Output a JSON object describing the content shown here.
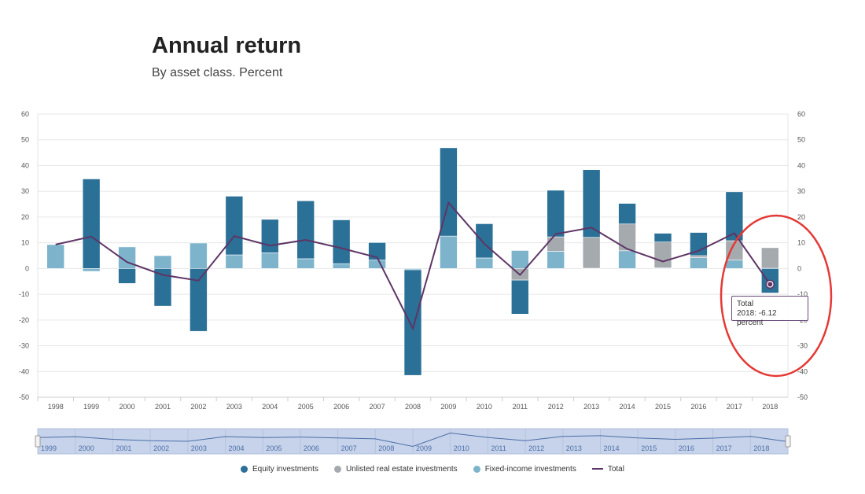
{
  "header": {
    "title": "Annual return",
    "subtitle": "By asset class. Percent"
  },
  "colors": {
    "equity": "#2b7096",
    "real_estate": "#a5aaaf",
    "fixed_income": "#7db4cc",
    "total": "#5e3566",
    "grid": "#e6e6e6",
    "highlight": "#e53935",
    "navigator": "#c7d3ea"
  },
  "chart_data": {
    "type": "bar",
    "title": "Annual return",
    "subtitle": "By asset class. Percent",
    "ylim": [
      -50,
      60
    ],
    "yticks": [
      -50,
      -40,
      -30,
      -20,
      -10,
      0,
      10,
      20,
      30,
      40,
      50,
      60
    ],
    "categories": [
      "1998",
      "1999",
      "2000",
      "2001",
      "2002",
      "2003",
      "2004",
      "2005",
      "2006",
      "2007",
      "2008",
      "2009",
      "2010",
      "2011",
      "2012",
      "2013",
      "2014",
      "2015",
      "2016",
      "2017",
      "2018"
    ],
    "series": [
      {
        "name": "Equity investments",
        "kind": "bar",
        "values": [
          0,
          34.8,
          -5.8,
          -14.6,
          -24.4,
          22.8,
          13.0,
          22.5,
          17.0,
          6.8,
          -41.0,
          34.3,
          13.3,
          -13.2,
          18.1,
          26.3,
          8.0,
          3.4,
          9.0,
          19.0,
          -9.5
        ]
      },
      {
        "name": "Unlisted real estate investments",
        "kind": "bar",
        "values": [
          0,
          0,
          0,
          0,
          0,
          0,
          0,
          0,
          0,
          0,
          0,
          0,
          0,
          -4.5,
          5.6,
          12.0,
          10.4,
          10.0,
          0.8,
          7.5,
          8.0
        ]
      },
      {
        "name": "Fixed-income investments",
        "kind": "bar",
        "values": [
          9.3,
          -1.1,
          8.4,
          5.0,
          9.9,
          5.3,
          6.1,
          3.8,
          1.9,
          3.3,
          -0.5,
          12.6,
          4.1,
          7.0,
          6.7,
          0.1,
          6.9,
          0.3,
          4.2,
          3.3,
          0.1
        ]
      },
      {
        "name": "Total",
        "kind": "line",
        "values": [
          9.3,
          12.4,
          2.5,
          -2.5,
          -4.7,
          12.6,
          8.9,
          11.1,
          7.9,
          4.3,
          -23.3,
          25.6,
          9.6,
          -2.5,
          13.4,
          15.9,
          7.6,
          2.7,
          6.9,
          13.7,
          -6.12
        ]
      }
    ],
    "tooltip": {
      "series": "Total",
      "text": "2018: -6.12 percent"
    },
    "navigator_labels": [
      "1999",
      "2000",
      "2001",
      "2002",
      "2003",
      "2004",
      "2005",
      "2006",
      "2007",
      "2008",
      "2009",
      "2010",
      "2011",
      "2012",
      "2013",
      "2014",
      "2015",
      "2016",
      "2017",
      "2018"
    ],
    "legend": {
      "placement": "bottom"
    }
  }
}
